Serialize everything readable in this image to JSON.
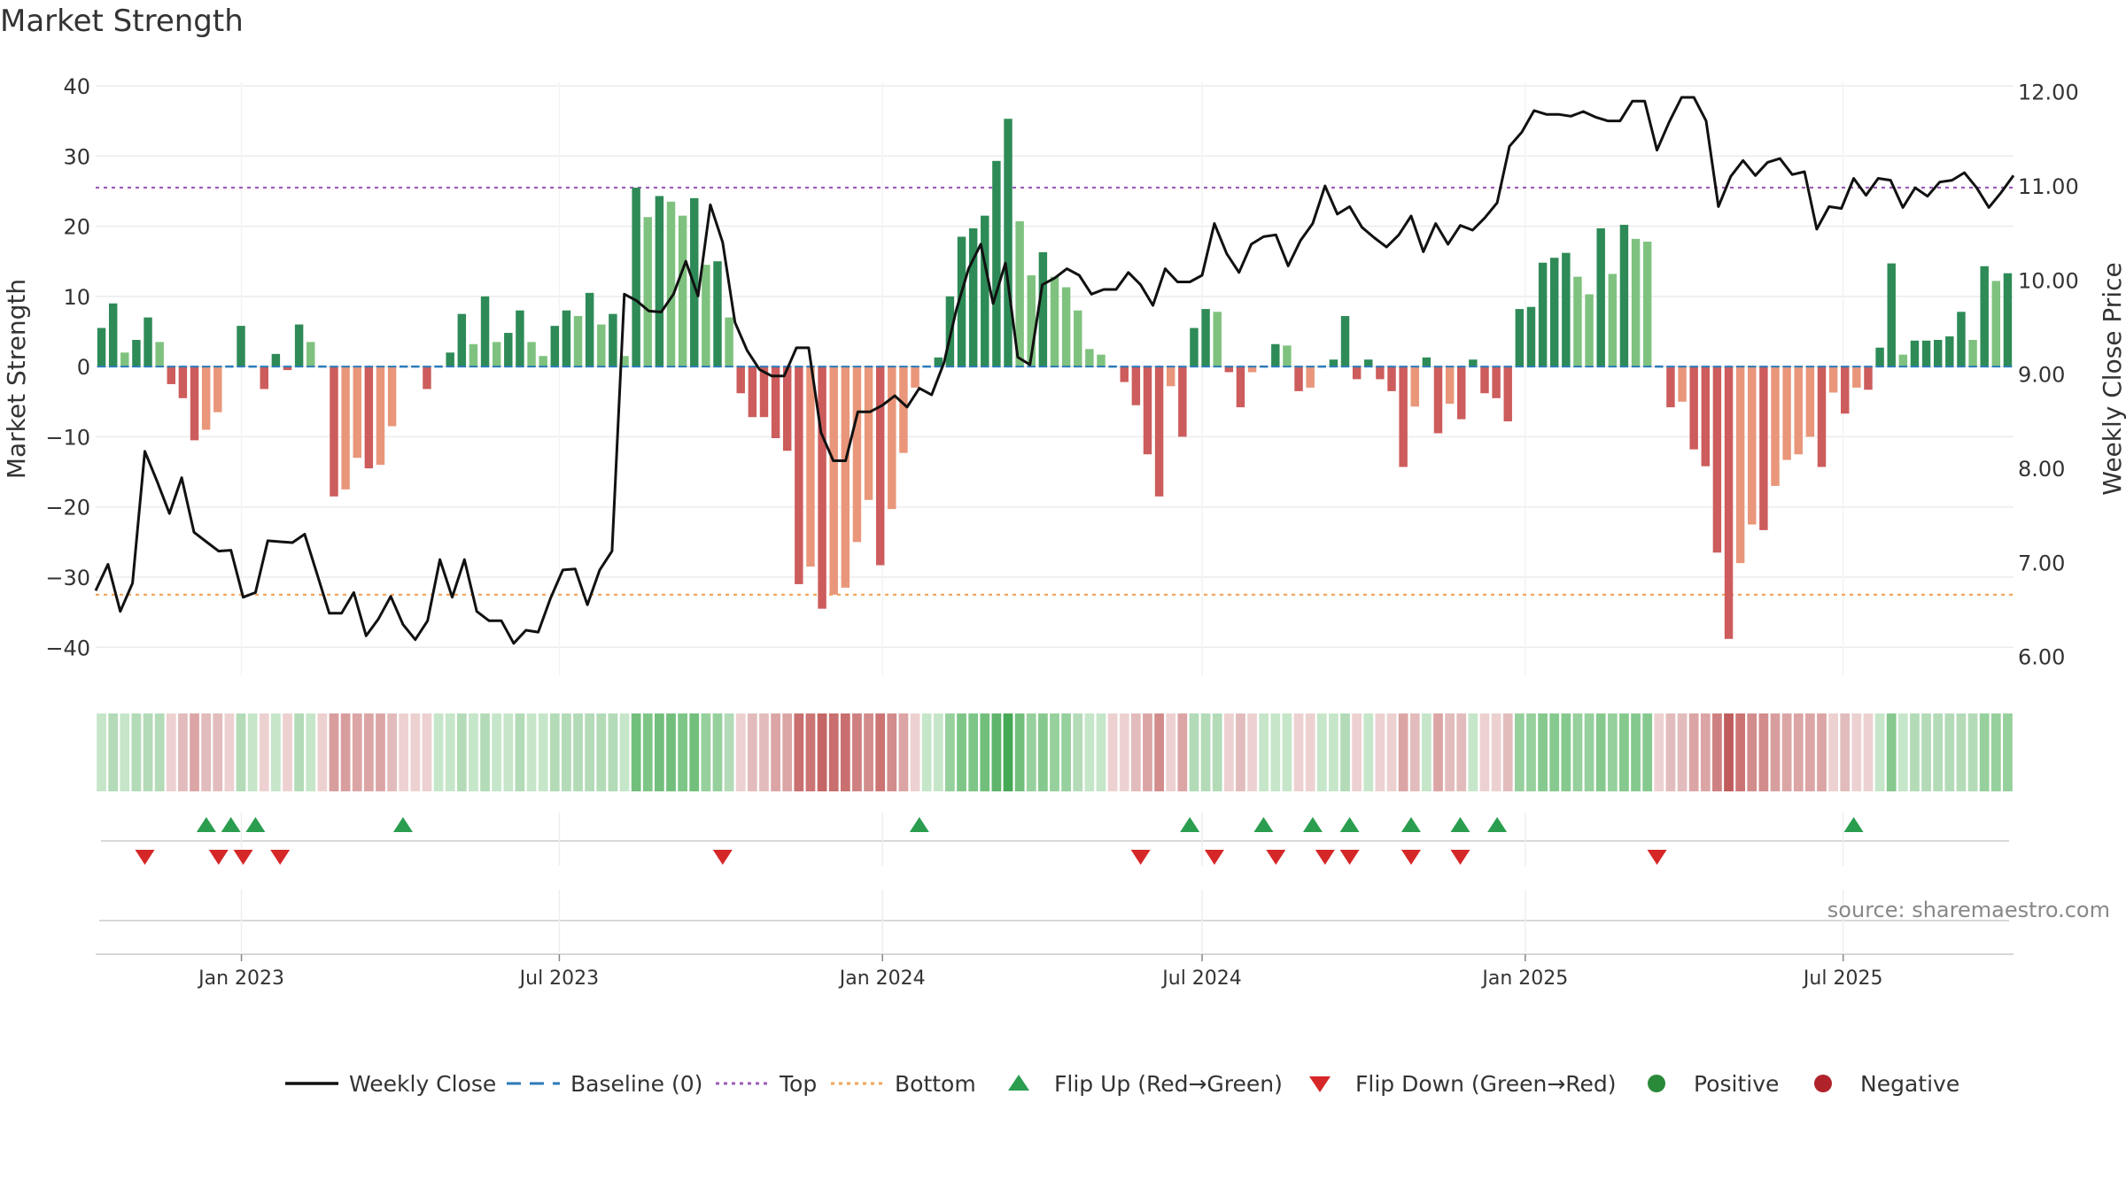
{
  "chart_data": {
    "type": "bar",
    "title": "Market Strength",
    "ylabel": "Market Strength",
    "y2label": "Weekly Close Price",
    "ylim": [
      -44,
      40.5
    ],
    "y2lim": [
      5.8,
      12.1
    ],
    "yticks": [
      40,
      30,
      20,
      10,
      0,
      -10,
      -20,
      -30,
      -40
    ],
    "y2ticks": [
      "12.00",
      "11.00",
      "10.00",
      "9.00",
      "8.00",
      "7.00",
      "6.00"
    ],
    "y2tick_values": [
      12,
      11,
      10,
      9,
      8,
      7,
      6
    ],
    "top_line": 25.5,
    "bottom_line": -32.5,
    "grid": true,
    "x_start": "2022-10-10",
    "x_end": "2025-10-06",
    "x_ticks": [
      {
        "date": "2023-01-01",
        "label": "Jan 2023"
      },
      {
        "date": "2023-07-01",
        "label": "Jul 2023"
      },
      {
        "date": "2024-01-01",
        "label": "Jan 2024"
      },
      {
        "date": "2024-07-01",
        "label": "Jul 2024"
      },
      {
        "date": "2025-01-01",
        "label": "Jan 2025"
      },
      {
        "date": "2025-07-01",
        "label": "Jul 2025"
      }
    ],
    "strength_values": [
      5.5,
      9,
      2,
      3.8,
      7,
      3.5,
      -2.5,
      -4.5,
      -10.5,
      -9,
      -6.5,
      0,
      5.8,
      0,
      -3.2,
      1.8,
      -0.5,
      6,
      3.5,
      0,
      -18.5,
      -17.5,
      -13,
      -14.5,
      -14,
      -8.5,
      0,
      0,
      -3.2,
      0,
      2,
      7.5,
      3.2,
      10,
      3.5,
      4.8,
      8,
      3.5,
      1.5,
      5.8,
      8,
      7.2,
      10.5,
      6,
      7.5,
      1.5,
      25.5,
      21.3,
      24.3,
      23.5,
      21.5,
      24,
      14.5,
      15,
      7,
      -3.8,
      -7.2,
      -7.2,
      -10.2,
      -12,
      -31,
      -28.5,
      -34.5,
      -32.5,
      -31.5,
      -25,
      -19,
      -28.3,
      -20.3,
      -12.3,
      -3,
      0,
      1.3,
      10,
      18.5,
      19.7,
      21.5,
      29.3,
      35.3,
      20.7,
      13,
      16.3,
      12.8,
      11.3,
      8,
      2.5,
      1.7,
      0,
      -2.2,
      -5.5,
      -12.5,
      -18.5,
      -2.8,
      -10,
      5.5,
      8.2,
      7.8,
      -0.8,
      -5.8,
      -0.8,
      0,
      3.2,
      3,
      -3.5,
      -3,
      0,
      1,
      7.2,
      -1.8,
      1,
      -1.8,
      -3.5,
      -14.3,
      -5.7,
      1.3,
      -9.5,
      -5.3,
      -7.5,
      1,
      -3.8,
      -4.5,
      -7.8,
      8.2,
      8.5,
      14.8,
      15.5,
      16.2,
      12.8,
      10.3,
      19.7,
      13.2,
      20.2,
      18.2,
      17.8,
      0,
      -5.8,
      -5,
      -11.8,
      -14.2,
      -26.5,
      -38.8,
      -28,
      -22.5,
      -23.3,
      -17,
      -13.3,
      -12.5,
      -10,
      -14.3,
      -3.7,
      -6.7,
      -3,
      -3.3,
      2.7,
      14.7,
      1.7,
      3.7,
      3.7,
      3.8,
      4.3,
      7.8,
      3.8,
      14.3,
      12.2,
      13.3
    ],
    "price_values": [
      6.7,
      6.98,
      6.48,
      6.78,
      8.18,
      7.86,
      7.52,
      7.9,
      7.32,
      7.22,
      7.12,
      7.13,
      6.63,
      6.68,
      7.23,
      7.22,
      7.21,
      7.3,
      6.88,
      6.46,
      6.46,
      6.68,
      6.22,
      6.4,
      6.64,
      6.34,
      6.18,
      6.38,
      7.03,
      6.63,
      7.03,
      6.48,
      6.38,
      6.38,
      6.14,
      6.28,
      6.26,
      6.62,
      6.92,
      6.93,
      6.55,
      6.92,
      7.12,
      9.85,
      9.78,
      9.67,
      9.66,
      9.85,
      10.2,
      9.83,
      10.8,
      10.4,
      9.55,
      9.25,
      9.05,
      8.98,
      8.98,
      9.28,
      9.28,
      8.38,
      8.08,
      8.08,
      8.6,
      8.6,
      8.67,
      8.77,
      8.65,
      8.85,
      8.78,
      9.12,
      9.68,
      10.12,
      10.38,
      9.75,
      10.18,
      9.18,
      9.1,
      9.95,
      10.02,
      10.12,
      10.05,
      9.85,
      9.9,
      9.9,
      10.08,
      9.95,
      9.73,
      10.12,
      9.98,
      9.98,
      10.05,
      10.6,
      10.28,
      10.08,
      10.38,
      10.46,
      10.48,
      10.15,
      10.42,
      10.6,
      11.0,
      10.7,
      10.78,
      10.56,
      10.45,
      10.35,
      10.48,
      10.68,
      10.3,
      10.6,
      10.38,
      10.58,
      10.53,
      10.66,
      10.82,
      11.42,
      11.57,
      11.8,
      11.76,
      11.76,
      11.74,
      11.79,
      11.73,
      11.69,
      11.69,
      11.9,
      11.9,
      11.38,
      11.68,
      11.94,
      11.94,
      11.69,
      10.78,
      11.1,
      11.27,
      11.11,
      11.25,
      11.29,
      11.12,
      11.15,
      10.54,
      10.78,
      10.76,
      11.08,
      10.9,
      11.08,
      11.06,
      10.77,
      10.98,
      10.89,
      11.04,
      11.06,
      11.14,
      10.98,
      10.77,
      10.93,
      11.11
    ],
    "color_strip": [
      "#c6e6c9",
      "#b3dbb7",
      "#c6e6c9",
      "#b3dbb7",
      "#b3dbb7",
      "#b3dbb7",
      "#edd1d1",
      "#e2bcbc",
      "#dca5a5",
      "#e2bcbc",
      "#e2bcbc",
      "#edd1d1",
      "#b3dbb7",
      "#c6e6c9",
      "#edd1d1",
      "#c6e6c9",
      "#edd1d1",
      "#b3dbb7",
      "#c6e6c9",
      "#edd1d1",
      "#d89e9e",
      "#d89e9e",
      "#dca5a5",
      "#dca5a5",
      "#dca5a5",
      "#e2bcbc",
      "#edd1d1",
      "#edd1d1",
      "#edd1d1",
      "#c6e6c9",
      "#c6e6c9",
      "#b3dbb7",
      "#c6e6c9",
      "#b3dbb7",
      "#c6e6c9",
      "#c6e6c9",
      "#b3dbb7",
      "#c6e6c9",
      "#c6e6c9",
      "#b3dbb7",
      "#b3dbb7",
      "#b3dbb7",
      "#b3dbb7",
      "#b3dbb7",
      "#b3dbb7",
      "#c6e6c9",
      "#72bf7c",
      "#7ec687",
      "#72bf7c",
      "#72bf7c",
      "#7ec687",
      "#72bf7c",
      "#96d09d",
      "#96d09d",
      "#b3dbb7",
      "#edd1d1",
      "#e2bcbc",
      "#e2bcbc",
      "#dca5a5",
      "#dca5a5",
      "#c96f6f",
      "#cc7474",
      "#c56565",
      "#c96f6f",
      "#c96f6f",
      "#cf8080",
      "#d38c8c",
      "#cc7474",
      "#d38c8c",
      "#dca5a5",
      "#edd1d1",
      "#c6e6c9",
      "#c6e6c9",
      "#96d09d",
      "#7ec687",
      "#7ec687",
      "#72bf7c",
      "#5fb56b",
      "#46a956",
      "#72bf7c",
      "#96d09d",
      "#86c98e",
      "#96d09d",
      "#96d09d",
      "#b3dbb7",
      "#c6e6c9",
      "#c6e6c9",
      "#edd1d1",
      "#edd1d1",
      "#e2bcbc",
      "#dca5a5",
      "#d38c8c",
      "#edd1d1",
      "#dca5a5",
      "#b3dbb7",
      "#b3dbb7",
      "#b3dbb7",
      "#edd1d1",
      "#e2bcbc",
      "#edd1d1",
      "#c6e6c9",
      "#c6e6c9",
      "#c6e6c9",
      "#edd1d1",
      "#edd1d1",
      "#c6e6c9",
      "#c6e6c9",
      "#b3dbb7",
      "#edd1d1",
      "#c6e6c9",
      "#edd1d1",
      "#edd1d1",
      "#dca5a5",
      "#e2bcbc",
      "#c6e6c9",
      "#dca5a5",
      "#e2bcbc",
      "#e2bcbc",
      "#c6e6c9",
      "#edd1d1",
      "#edd1d1",
      "#e2bcbc",
      "#96d09d",
      "#96d09d",
      "#86c98e",
      "#86c98e",
      "#86c98e",
      "#96d09d",
      "#96d09d",
      "#86c98e",
      "#96d09d",
      "#86c98e",
      "#86c98e",
      "#86c98e",
      "#edd1d1",
      "#e2bcbc",
      "#e2bcbc",
      "#dca5a5",
      "#dca5a5",
      "#cf8080",
      "#c05c5c",
      "#cc7474",
      "#d38c8c",
      "#d38c8c",
      "#d89e9e",
      "#dca5a5",
      "#dca5a5",
      "#dca5a5",
      "#dca5a5",
      "#edd1d1",
      "#e2bcbc",
      "#edd1d1",
      "#edd1d1",
      "#c6e6c9",
      "#86c98e",
      "#c6e6c9",
      "#b3dbb7",
      "#b3dbb7",
      "#b3dbb7",
      "#b3dbb7",
      "#b3dbb7",
      "#b3dbb7",
      "#96d09d",
      "#96d09d",
      "#96d09d"
    ],
    "flip_up_dates": [
      "2022-12-12",
      "2022-12-26",
      "2023-01-09",
      "2023-04-03",
      "2024-01-22",
      "2024-06-24",
      "2024-08-05",
      "2024-09-02",
      "2024-09-23",
      "2024-10-28",
      "2024-11-25",
      "2024-12-16",
      "2025-07-07"
    ],
    "flip_down_dates": [
      "2022-11-07",
      "2022-12-19",
      "2023-01-02",
      "2023-01-23",
      "2023-10-02",
      "2024-05-27",
      "2024-07-08",
      "2024-08-12",
      "2024-09-09",
      "2024-09-23",
      "2024-10-28",
      "2024-11-25",
      "2025-03-17"
    ],
    "legend": [
      {
        "label": "Weekly Close",
        "symbol": "line",
        "color": "#111111"
      },
      {
        "label": "Baseline (0)",
        "symbol": "dash",
        "color": "#2b7bba"
      },
      {
        "label": "Top",
        "symbol": "dot",
        "color": "#9b59b6"
      },
      {
        "label": "Bottom",
        "symbol": "dot",
        "color": "#f0a35a"
      },
      {
        "label": "Flip Up (Red→Green)",
        "symbol": "tri-up",
        "color": "#2a9d4f"
      },
      {
        "label": "Flip Down (Green→Red)",
        "symbol": "tri-down",
        "color": "#d62728"
      },
      {
        "label": "Positive",
        "symbol": "circle",
        "color": "#2a8a3a"
      },
      {
        "label": "Negative",
        "symbol": "circle",
        "color": "#b0232a"
      }
    ],
    "source": "source: sharemaestro.com",
    "colors": {
      "pos_strong": "#2e8b57",
      "pos_light": "#7fc27f",
      "neg_strong": "#cd5c5c",
      "neg_light": "#e9967a",
      "price_line": "#111111",
      "top_line": "#9b59b6",
      "bottom_line": "#f0a35a",
      "baseline": "#2b7bba"
    }
  }
}
